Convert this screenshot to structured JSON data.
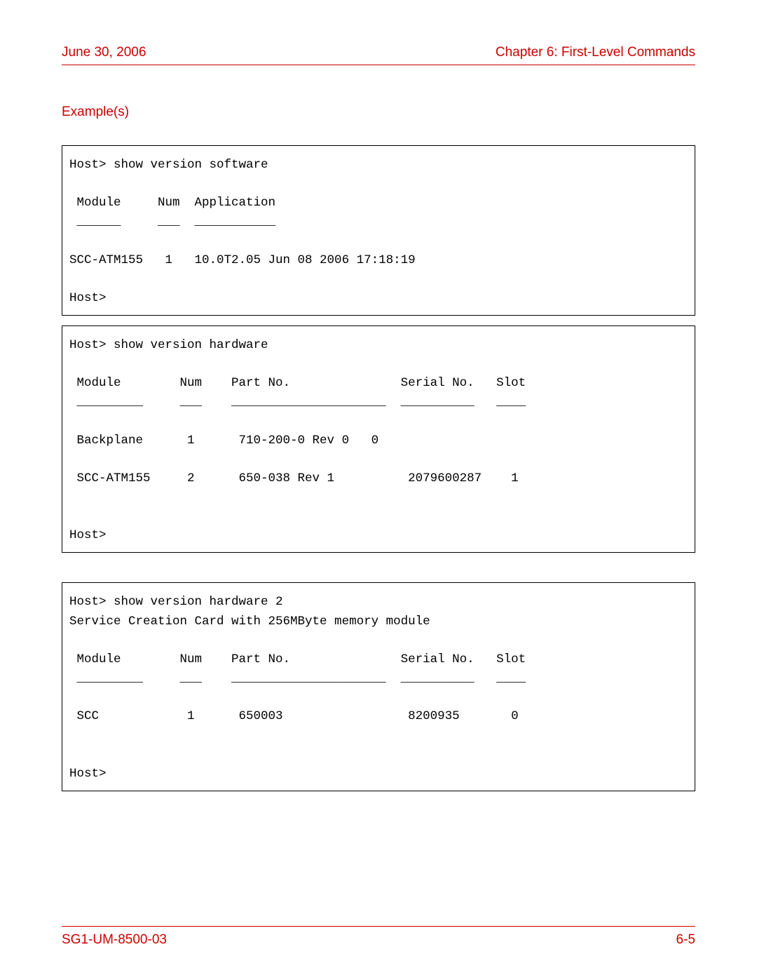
{
  "header": {
    "date": "June 30, 2006",
    "chapter": "Chapter 6: First-Level Commands"
  },
  "section_title": "Example(s)",
  "blocks": {
    "b1": {
      "line1": "Host> show version software",
      "blank1": "",
      "line2": " Module     Num  Application",
      "line3": " ______     ___  ___________",
      "blank2": "",
      "line4": "SCC-ATM155   1   10.0T2.05 Jun 08 2006 17:18:19",
      "blank3": "",
      "line5": "Host>"
    },
    "b2": {
      "line1": "Host> show version hardware",
      "blank1": "",
      "line2": " Module        Num    Part No.               Serial No.   Slot",
      "line3": " _________     ___    _____________________  __________   ____",
      "blank2": "",
      "line4": " Backplane      1      710-200-0 Rev 0   0",
      "blank3": "",
      "line5": " SCC-ATM155     2      650-038 Rev 1          2079600287    1",
      "blank4": "",
      "blank5": "",
      "line6": "Host>"
    },
    "b3": {
      "line1": "Host> show version hardware 2",
      "line2": "Service Creation Card with 256MByte memory module",
      "blank1": "",
      "line3": " Module        Num    Part No.               Serial No.   Slot",
      "line4": " _________     ___    _____________________  __________   ____",
      "blank2": "",
      "line5": " SCC            1      650003                 8200935       0",
      "blank3": "",
      "blank4": "",
      "line6": "Host>"
    }
  },
  "footer": {
    "doc_id": "SG1-UM-8500-03",
    "page_no": "6-5"
  },
  "colors": {
    "accent": "#cc0000",
    "text": "#000000",
    "border": "#000000",
    "background": "#ffffff"
  },
  "typography": {
    "body_font": "Arial",
    "mono_font": "Courier New",
    "header_fontsize_pt": 14,
    "mono_fontsize_pt": 13
  }
}
